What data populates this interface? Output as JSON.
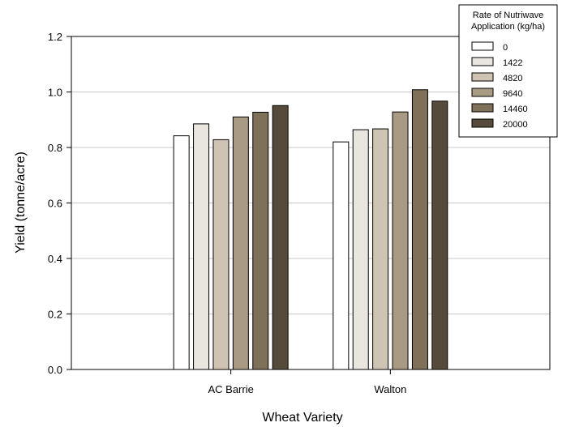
{
  "chart_data": {
    "type": "bar",
    "xlabel": "Wheat Variety",
    "ylabel": "Yield (tonne/acre)",
    "ylim": [
      0,
      1.2
    ],
    "yticks": [
      "0.0",
      "0.2",
      "0.4",
      "0.6",
      "0.8",
      "1.0",
      "1.2"
    ],
    "grid": true,
    "legend_placement": "top-right",
    "legend_title": [
      "Rate of Nutriwave",
      "Application (kg/ha)"
    ],
    "categories": [
      "AC Barrie",
      "Walton"
    ],
    "series": [
      {
        "name": "0",
        "color": "#ffffff",
        "values": [
          0.842,
          0.82
        ]
      },
      {
        "name": "1422",
        "color": "#e9e5df",
        "values": [
          0.885,
          0.864
        ]
      },
      {
        "name": "4820",
        "color": "#cfc4b4",
        "values": [
          0.828,
          0.867
        ]
      },
      {
        "name": "9640",
        "color": "#a99a83",
        "values": [
          0.91,
          0.928
        ]
      },
      {
        "name": "14460",
        "color": "#7f705a",
        "values": [
          0.927,
          1.008
        ]
      },
      {
        "name": "20000",
        "color": "#564b3b",
        "values": [
          0.951,
          0.967
        ]
      }
    ]
  }
}
